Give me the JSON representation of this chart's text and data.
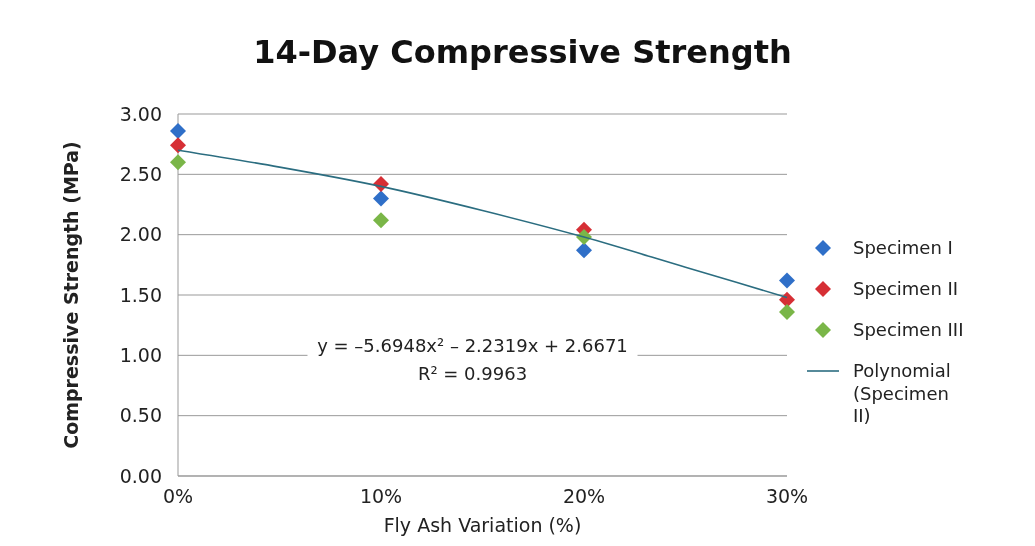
{
  "chart_data": {
    "type": "scatter",
    "title": "14-Day Compressive Strength",
    "xlabel": "Fly Ash Variation (%)",
    "ylabel": "Compressive Strength (MPa)",
    "x": [
      0,
      10,
      20,
      30
    ],
    "xlim": [
      0,
      30
    ],
    "xticks": [
      {
        "value": 0,
        "label": "0%"
      },
      {
        "value": 10,
        "label": "10%"
      },
      {
        "value": 20,
        "label": "20%"
      },
      {
        "value": 30,
        "label": "30%"
      }
    ],
    "ylim": [
      0,
      3
    ],
    "yticks": [
      {
        "value": 0,
        "label": "0.00"
      },
      {
        "value": 0.5,
        "label": "0.50"
      },
      {
        "value": 1,
        "label": "1.00"
      },
      {
        "value": 1.5,
        "label": "1.50"
      },
      {
        "value": 2,
        "label": "2.00"
      },
      {
        "value": 2.5,
        "label": "2.50"
      },
      {
        "value": 3,
        "label": "3.00"
      }
    ],
    "grid": "y",
    "legend": "right",
    "marker": "diamond",
    "series": [
      {
        "name": "Specimen I",
        "color": "#2f6fc8",
        "values": [
          2.86,
          2.3,
          1.87,
          1.62
        ]
      },
      {
        "name": "Specimen II",
        "color": "#d62f35",
        "values": [
          2.74,
          2.42,
          2.04,
          1.46
        ]
      },
      {
        "name": "Specimen III",
        "color": "#7ab648",
        "values": [
          2.6,
          2.12,
          1.98,
          1.36
        ]
      },
      {
        "name": "Polynomial (Specimen II)",
        "type": "line",
        "marker": "none",
        "color": "#2b6d80",
        "x": [
          0,
          5,
          10,
          15,
          20,
          25,
          30
        ],
        "values": [
          2.7,
          2.56,
          2.4,
          2.2,
          1.98,
          1.73,
          1.48
        ]
      }
    ],
    "annotations": [
      "y = –5.6948x² – 2.2319x + 2.6671",
      "R² = 0.9963"
    ]
  }
}
